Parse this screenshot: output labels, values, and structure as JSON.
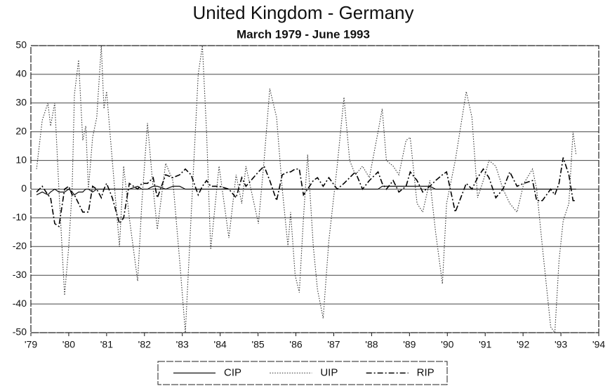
{
  "chart_data": {
    "type": "line",
    "title": "United Kingdom - Germany",
    "subtitle": "March 1979 - June 1993",
    "x": [
      1979.15,
      1979.3,
      1979.45,
      1979.52,
      1979.63,
      1979.74,
      1979.89,
      1980.0,
      1980.09,
      1980.15,
      1980.26,
      1980.37,
      1980.45,
      1980.52,
      1980.63,
      1980.74,
      1980.86,
      1980.93,
      1981.0,
      1981.15,
      1981.34,
      1981.45,
      1981.6,
      1981.82,
      1981.93,
      1982.08,
      1982.23,
      1982.34,
      1982.56,
      1982.75,
      1982.93,
      1983.08,
      1983.23,
      1983.42,
      1983.53,
      1983.64,
      1983.75,
      1983.97,
      1984.23,
      1984.42,
      1984.57,
      1984.68,
      1985.01,
      1985.16,
      1985.31,
      1985.49,
      1985.64,
      1985.79,
      1985.86,
      1985.98,
      1986.09,
      1986.2,
      1986.31,
      1986.46,
      1986.57,
      1986.72,
      1986.87,
      1987.09,
      1987.27,
      1987.42,
      1987.57,
      1987.76,
      1987.94,
      1988.17,
      1988.28,
      1988.39,
      1988.57,
      1988.72,
      1988.91,
      1989.02,
      1989.2,
      1989.35,
      1989.54,
      1989.69,
      1989.87,
      1989.98,
      1990.21,
      1990.5,
      1990.65,
      1990.8,
      1990.95,
      1991.1,
      1991.28,
      1991.47,
      1991.65,
      1991.84,
      1992.02,
      1992.25,
      1992.36,
      1992.51,
      1992.73,
      1992.84,
      1992.95,
      1993.06,
      1993.21,
      1993.32,
      1993.4
    ],
    "series": [
      {
        "name": "CIP",
        "color": "#111111",
        "style": "solid",
        "values": [
          -2,
          -1,
          -2,
          -1,
          0,
          -1,
          -1,
          0,
          -1,
          -2,
          -1,
          -1,
          0,
          0,
          -1,
          0,
          0,
          0,
          0,
          0,
          0,
          0,
          0,
          1,
          0,
          0,
          1,
          1,
          0,
          1,
          1,
          0,
          0,
          0,
          0,
          0,
          0,
          0,
          0,
          0,
          0,
          0,
          0,
          0,
          0,
          0,
          0,
          0,
          0,
          0,
          0,
          0,
          0,
          0,
          0,
          0,
          0,
          0,
          0,
          0,
          0,
          0,
          0,
          0,
          1,
          1,
          1,
          1,
          1,
          1,
          1,
          1,
          1,
          0,
          0,
          0,
          0,
          0,
          0,
          0,
          0,
          0,
          0,
          0,
          0,
          0,
          0,
          0,
          0,
          0,
          0,
          0,
          0,
          0,
          0,
          0,
          0
        ]
      },
      {
        "name": "UIP",
        "color": "#333333",
        "style": "dotted",
        "values": [
          7,
          24,
          30,
          22,
          30,
          0,
          -37,
          -20,
          0,
          33,
          45,
          17,
          22,
          0,
          18,
          25,
          50,
          28,
          34,
          10,
          -20,
          8,
          -10,
          -32,
          -5,
          23,
          0,
          -14,
          9,
          3,
          -25,
          -50,
          -10,
          40,
          50,
          20,
          -21,
          8,
          -17,
          5,
          -5,
          8,
          -12,
          10,
          35,
          25,
          0,
          -20,
          -8,
          -30,
          -36,
          -10,
          12,
          -20,
          -35,
          -45,
          -18,
          8,
          32,
          10,
          5,
          8,
          4,
          20,
          28,
          10,
          8,
          5,
          17,
          18,
          -5,
          -8,
          3,
          -15,
          -33,
          -5,
          10,
          34,
          25,
          -3,
          3,
          10,
          8,
          0,
          -5,
          -8,
          2,
          7,
          0,
          -20,
          -48,
          -50,
          -25,
          -11,
          -5,
          20,
          12
        ]
      },
      {
        "name": "RIP",
        "color": "#000000",
        "style": "dashdot",
        "values": [
          -1,
          1,
          -2,
          -3,
          -12,
          -13,
          0,
          1,
          -2,
          -2,
          -5,
          -8,
          -8,
          -8,
          1,
          0,
          -3,
          0,
          2,
          -3,
          -12,
          -10,
          2,
          0,
          2,
          2,
          4,
          -3,
          5,
          4,
          5,
          7,
          5,
          -2,
          1,
          3,
          1,
          1,
          0,
          -3,
          4,
          1,
          6,
          8,
          3,
          -4,
          5,
          6,
          6,
          7,
          7,
          -2,
          0,
          3,
          4,
          1,
          4,
          0,
          2,
          4,
          6,
          0,
          3,
          6,
          2,
          0,
          3,
          -1,
          1,
          6,
          3,
          -1,
          1,
          3,
          5,
          6,
          -8,
          2,
          0,
          4,
          7,
          4,
          -3,
          0,
          6,
          1,
          2,
          3,
          -4,
          -4,
          0,
          -2,
          2,
          11,
          5,
          -4,
          -4
        ]
      }
    ],
    "xlim": [
      1979,
      1994
    ],
    "xticks": [
      {
        "value": 1979,
        "label": "'79"
      },
      {
        "value": 1980,
        "label": "'80"
      },
      {
        "value": 1981,
        "label": "'81"
      },
      {
        "value": 1982,
        "label": "'82"
      },
      {
        "value": 1983,
        "label": "'83"
      },
      {
        "value": 1984,
        "label": "'84"
      },
      {
        "value": 1985,
        "label": "'85"
      },
      {
        "value": 1986,
        "label": "'86"
      },
      {
        "value": 1987,
        "label": "'87"
      },
      {
        "value": 1988,
        "label": "'88"
      },
      {
        "value": 1989,
        "label": "'89"
      },
      {
        "value": 1990,
        "label": "'90"
      },
      {
        "value": 1991,
        "label": "'91"
      },
      {
        "value": 1992,
        "label": "'92"
      },
      {
        "value": 1993,
        "label": "'93"
      },
      {
        "value": 1994,
        "label": "'94"
      }
    ],
    "ylim": [
      -50,
      50
    ],
    "yticks": [
      -50,
      -40,
      -30,
      -20,
      -10,
      0,
      10,
      20,
      30,
      40,
      50
    ],
    "grid": true,
    "legend": "bottom"
  }
}
